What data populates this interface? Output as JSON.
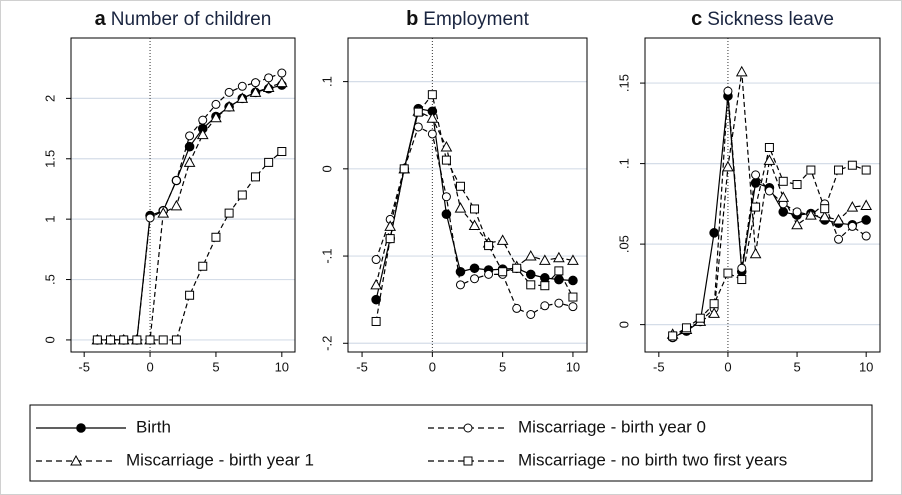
{
  "chart_data": [
    {
      "type": "line",
      "label": "a",
      "title": "Number of children",
      "x": [
        -4,
        -3,
        -2,
        -1,
        0,
        1,
        2,
        3,
        4,
        5,
        6,
        7,
        8,
        9,
        10
      ],
      "xlim": [
        -6,
        11
      ],
      "xticks": [
        -5,
        0,
        5,
        10
      ],
      "ylim": [
        -0.1,
        2.5
      ],
      "yticks": [
        0,
        {
          "value": 0.5,
          "label": ".5"
        },
        1,
        1.5,
        2
      ],
      "grid": true,
      "vline": 0,
      "series": [
        {
          "name": "Birth",
          "color": "#000000",
          "marker": "filled-circle",
          "dash": false,
          "values": [
            0,
            0,
            0,
            0,
            1.03,
            1.07,
            1.32,
            1.6,
            1.75,
            1.85,
            1.93,
            2.0,
            2.05,
            2.08,
            2.11
          ]
        },
        {
          "name": "Miscarriage - birth year 0",
          "color": "#000000",
          "marker": "circle",
          "dash": true,
          "values": [
            0,
            0,
            0,
            0,
            1.01,
            1.07,
            1.32,
            1.69,
            1.82,
            1.95,
            2.05,
            2.1,
            2.13,
            2.17,
            2.21
          ]
        },
        {
          "name": "Miscarriage - birth year 1",
          "color": "#000000",
          "marker": "triangle",
          "dash": true,
          "values": [
            0,
            0,
            0,
            0,
            0,
            1.05,
            1.11,
            1.47,
            1.7,
            1.84,
            1.93,
            2.0,
            2.05,
            2.09,
            2.13
          ]
        },
        {
          "name": "Miscarriage - no birth two first years",
          "color": "#000000",
          "marker": "square",
          "dash": true,
          "values": [
            0,
            0,
            0,
            0,
            0,
            0,
            0,
            0.37,
            0.61,
            0.85,
            1.05,
            1.2,
            1.35,
            1.47,
            1.56
          ]
        }
      ]
    },
    {
      "type": "line",
      "label": "b",
      "title": "Employment",
      "x": [
        -4,
        -3,
        -2,
        -1,
        0,
        1,
        2,
        3,
        4,
        5,
        6,
        7,
        8,
        9,
        10
      ],
      "xlim": [
        -6,
        11
      ],
      "xticks": [
        -5,
        0,
        5,
        10
      ],
      "ylim": [
        -0.21,
        0.15
      ],
      "yticks": [
        {
          "value": -0.2,
          "label": "-.2"
        },
        {
          "value": -0.1,
          "label": "-.1"
        },
        0,
        {
          "value": 0.1,
          "label": ".1"
        }
      ],
      "grid": true,
      "vline": 0,
      "series": [
        {
          "name": "Birth",
          "color": "#000000",
          "marker": "filled-circle",
          "dash": false,
          "values": [
            -0.15,
            -0.08,
            0,
            0.069,
            0.066,
            -0.052,
            -0.118,
            -0.114,
            -0.116,
            -0.115,
            -0.114,
            -0.121,
            -0.125,
            -0.127,
            -0.128
          ]
        },
        {
          "name": "Miscarriage - birth year 0",
          "color": "#000000",
          "marker": "circle",
          "dash": true,
          "values": [
            -0.104,
            -0.058,
            0,
            0.048,
            0.04,
            -0.032,
            -0.133,
            -0.126,
            -0.121,
            -0.121,
            -0.16,
            -0.167,
            -0.157,
            -0.154,
            -0.158
          ]
        },
        {
          "name": "Miscarriage - birth year 1",
          "color": "#000000",
          "marker": "triangle",
          "dash": true,
          "values": [
            -0.133,
            -0.066,
            0,
            0.066,
            0.058,
            0.025,
            -0.045,
            -0.065,
            -0.085,
            -0.082,
            -0.112,
            -0.1,
            -0.105,
            -0.102,
            -0.105
          ]
        },
        {
          "name": "Miscarriage - no birth two first years",
          "color": "#000000",
          "marker": "square",
          "dash": true,
          "values": [
            -0.175,
            -0.08,
            0,
            0.065,
            0.085,
            0.01,
            -0.02,
            -0.046,
            -0.088,
            -0.118,
            -0.114,
            -0.133,
            -0.134,
            -0.117,
            -0.147
          ]
        }
      ]
    },
    {
      "type": "line",
      "label": "c",
      "title": "Sickness leave",
      "x": [
        -4,
        -3,
        -2,
        -1,
        0,
        1,
        2,
        3,
        4,
        5,
        6,
        7,
        8,
        9,
        10
      ],
      "xlim": [
        -6,
        11
      ],
      "xticks": [
        -5,
        0,
        5,
        10
      ],
      "ylim": [
        -0.017,
        0.178
      ],
      "yticks": [
        0,
        {
          "value": 0.05,
          "label": ".05"
        },
        {
          "value": 0.1,
          "label": ".1"
        },
        {
          "value": 0.15,
          "label": ".15"
        }
      ],
      "grid": true,
      "vline": 0,
      "series": [
        {
          "name": "Birth",
          "color": "#000000",
          "marker": "filled-circle",
          "dash": false,
          "values": [
            -0.008,
            -0.004,
            0.002,
            0.057,
            0.142,
            0.033,
            0.088,
            0.085,
            0.07,
            0.068,
            0.069,
            0.065,
            0.063,
            0.062,
            0.065
          ]
        },
        {
          "name": "Miscarriage - birth year 0",
          "color": "#000000",
          "marker": "circle",
          "dash": true,
          "values": [
            -0.008,
            -0.003,
            0.002,
            0.01,
            0.145,
            0.035,
            0.093,
            0.083,
            0.075,
            0.07,
            0.068,
            0.075,
            0.053,
            0.061,
            0.055
          ]
        },
        {
          "name": "Miscarriage - birth year 1",
          "color": "#000000",
          "marker": "triangle",
          "dash": true,
          "values": [
            -0.006,
            -0.003,
            0.002,
            0.007,
            0.098,
            0.157,
            0.044,
            0.102,
            0.079,
            0.062,
            0.068,
            0.067,
            0.065,
            0.073,
            0.074
          ]
        },
        {
          "name": "Miscarriage - no birth two first years",
          "color": "#000000",
          "marker": "square",
          "dash": true,
          "values": [
            -0.007,
            -0.002,
            0.004,
            0.013,
            0.032,
            0.028,
            0.073,
            0.11,
            0.089,
            0.087,
            0.096,
            0.072,
            0.096,
            0.099,
            0.096
          ]
        }
      ]
    }
  ]
}
